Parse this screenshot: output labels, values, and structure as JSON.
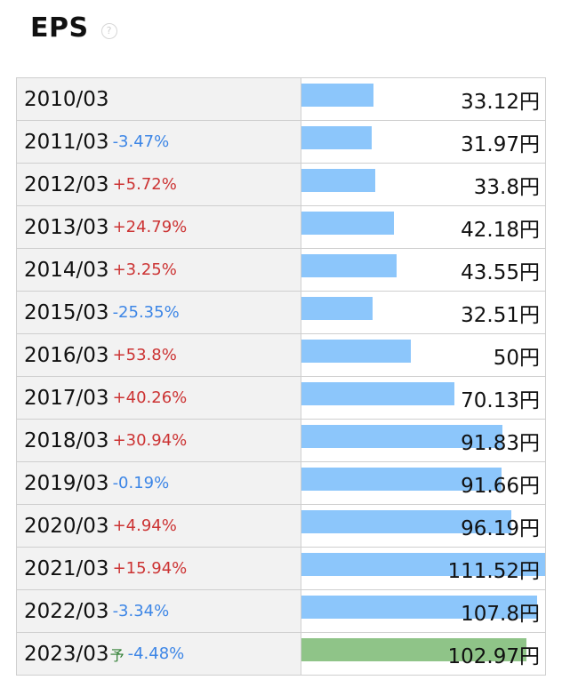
{
  "header": {
    "title": "EPS",
    "help_icon": "help-icon"
  },
  "chart_data": {
    "type": "bar",
    "orientation": "horizontal",
    "title": "EPS",
    "unit": "円",
    "colors": {
      "actual": "#8cc6fb",
      "forecast": "#8fc488",
      "increase": "#cc3333",
      "decrease": "#3d86e6"
    },
    "rows": [
      {
        "year": "2010/03",
        "change": "",
        "value": 33.12,
        "display": "33.12円",
        "forecast": false
      },
      {
        "year": "2011/03",
        "change": "-3.47%",
        "value": 31.97,
        "display": "31.97円",
        "forecast": false
      },
      {
        "year": "2012/03",
        "change": "+5.72%",
        "value": 33.8,
        "display": "33.8円",
        "forecast": false
      },
      {
        "year": "2013/03",
        "change": "+24.79%",
        "value": 42.18,
        "display": "42.18円",
        "forecast": false
      },
      {
        "year": "2014/03",
        "change": "+3.25%",
        "value": 43.55,
        "display": "43.55円",
        "forecast": false
      },
      {
        "year": "2015/03",
        "change": "-25.35%",
        "value": 32.51,
        "display": "32.51円",
        "forecast": false
      },
      {
        "year": "2016/03",
        "change": "+53.8%",
        "value": 50,
        "display": "50円",
        "forecast": false
      },
      {
        "year": "2017/03",
        "change": "+40.26%",
        "value": 70.13,
        "display": "70.13円",
        "forecast": false
      },
      {
        "year": "2018/03",
        "change": "+30.94%",
        "value": 91.83,
        "display": "91.83円",
        "forecast": false
      },
      {
        "year": "2019/03",
        "change": "-0.19%",
        "value": 91.66,
        "display": "91.66円",
        "forecast": false
      },
      {
        "year": "2020/03",
        "change": "+4.94%",
        "value": 96.19,
        "display": "96.19円",
        "forecast": false
      },
      {
        "year": "2021/03",
        "change": "+15.94%",
        "value": 111.52,
        "display": "111.52円",
        "forecast": false
      },
      {
        "year": "2022/03",
        "change": "-3.34%",
        "value": 107.8,
        "display": "107.8円",
        "forecast": false
      },
      {
        "year": "2023/03",
        "change": "-4.48%",
        "value": 102.97,
        "display": "102.97円",
        "forecast": true,
        "forecast_mark": "予"
      }
    ]
  }
}
